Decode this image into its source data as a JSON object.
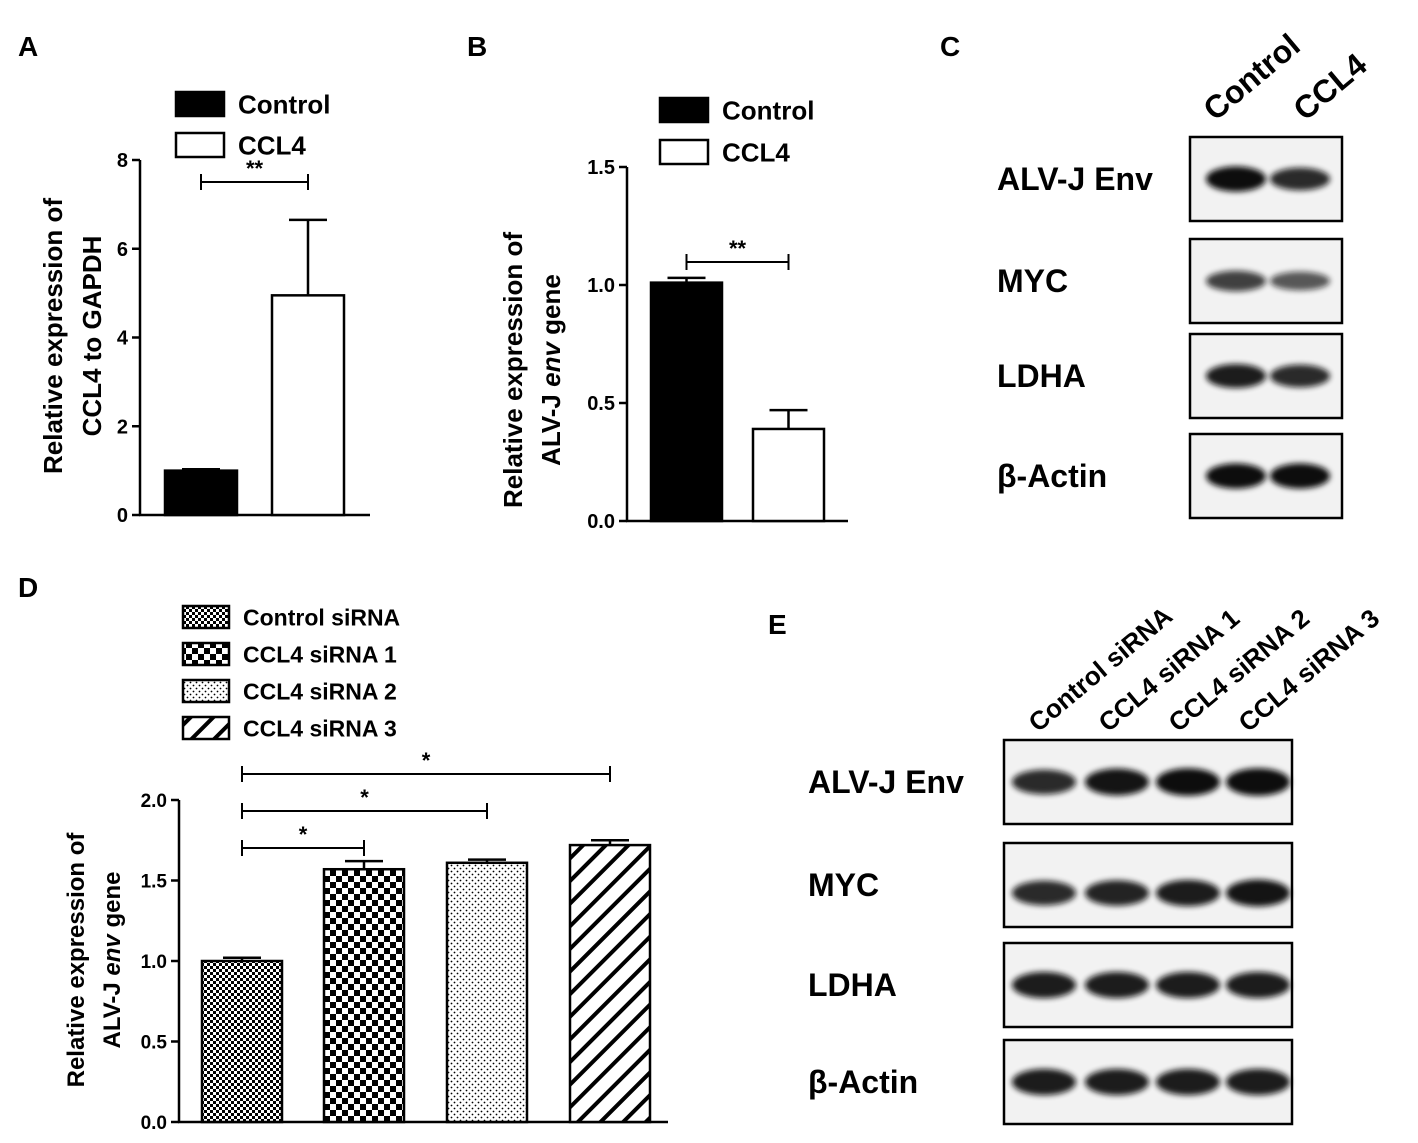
{
  "panels": {
    "A": "A",
    "B": "B",
    "C": "C",
    "D": "D",
    "E": "E"
  },
  "colors": {
    "black": "#000000",
    "white": "#ffffff",
    "band": "#111111",
    "blot_bg": "#f2f2f2"
  },
  "chart_data": [
    {
      "panel": "A",
      "type": "bar",
      "categories": [
        "Control",
        "CCL4"
      ],
      "values": [
        1.0,
        4.95
      ],
      "errors": [
        0.03,
        1.7
      ],
      "fills": [
        "solid",
        "open"
      ],
      "ylabel": [
        "Relative expression of",
        "CCL4 to GAPDH"
      ],
      "ylim": [
        0,
        8
      ],
      "yticks": [
        "0",
        "2",
        "4",
        "6",
        "8"
      ],
      "legend": [
        "Control",
        "CCL4"
      ],
      "significance": [
        {
          "from": 0,
          "to": 1,
          "label": "**"
        }
      ]
    },
    {
      "panel": "B",
      "type": "bar",
      "categories": [
        "Control",
        "CCL4"
      ],
      "values": [
        1.01,
        0.39
      ],
      "errors": [
        0.02,
        0.08
      ],
      "fills": [
        "solid",
        "open"
      ],
      "ylabel": [
        "Relative expression of",
        "ALV-J ",
        "env",
        " gene"
      ],
      "ylim": [
        0,
        1.5
      ],
      "yticks": [
        "0.0",
        "0.5",
        "1.0",
        "1.5"
      ],
      "legend": [
        "Control",
        "CCL4"
      ],
      "significance": [
        {
          "from": 0,
          "to": 1,
          "label": "**"
        }
      ]
    },
    {
      "panel": "D",
      "type": "bar",
      "categories": [
        "Control siRNA",
        "CCL4 siRNA 1",
        "CCL4 siRNA 2",
        "CCL4 siRNA 3"
      ],
      "values": [
        1.0,
        1.57,
        1.61,
        1.72
      ],
      "errors": [
        0.02,
        0.05,
        0.02,
        0.03
      ],
      "fills": [
        "fine-check",
        "check",
        "dots",
        "diagonal"
      ],
      "ylabel": [
        "Relative expression of",
        "ALV-J ",
        "env",
        " gene"
      ],
      "ylim": [
        0,
        2.0
      ],
      "yticks": [
        "0.0",
        "0.5",
        "1.0",
        "1.5",
        "2.0"
      ],
      "legend": [
        "Control siRNA",
        "CCL4 siRNA 1",
        "CCL4 siRNA 2",
        "CCL4 siRNA 3"
      ],
      "significance": [
        {
          "from": 0,
          "to": 1,
          "label": "*"
        },
        {
          "from": 0,
          "to": 2,
          "label": "*"
        },
        {
          "from": 0,
          "to": 3,
          "label": "*"
        }
      ]
    }
  ],
  "blots": {
    "C": {
      "lanes": [
        "Control",
        "CCL4"
      ],
      "rows": [
        {
          "label": "ALV-J Env",
          "intensity": [
            1.0,
            0.8
          ]
        },
        {
          "label": "MYC",
          "intensity": [
            0.65,
            0.5
          ]
        },
        {
          "label": "LDHA",
          "intensity": [
            0.9,
            0.8
          ]
        },
        {
          "label": "β-Actin",
          "intensity": [
            1.0,
            1.0
          ]
        }
      ]
    },
    "E": {
      "lanes": [
        "Control siRNA",
        "CCL4  siRNA 1",
        "CCL4  siRNA 2",
        "CCL4  siRNA 3"
      ],
      "rows": [
        {
          "label": "ALV-J Env",
          "intensity": [
            0.8,
            0.95,
            1.0,
            1.0
          ]
        },
        {
          "label": "MYC",
          "intensity": [
            0.8,
            0.85,
            0.9,
            0.95
          ]
        },
        {
          "label": "LDHA",
          "intensity": [
            0.9,
            0.9,
            0.9,
            0.9
          ]
        },
        {
          "label": "β-Actin",
          "intensity": [
            0.9,
            0.9,
            0.9,
            0.9
          ]
        }
      ]
    }
  }
}
